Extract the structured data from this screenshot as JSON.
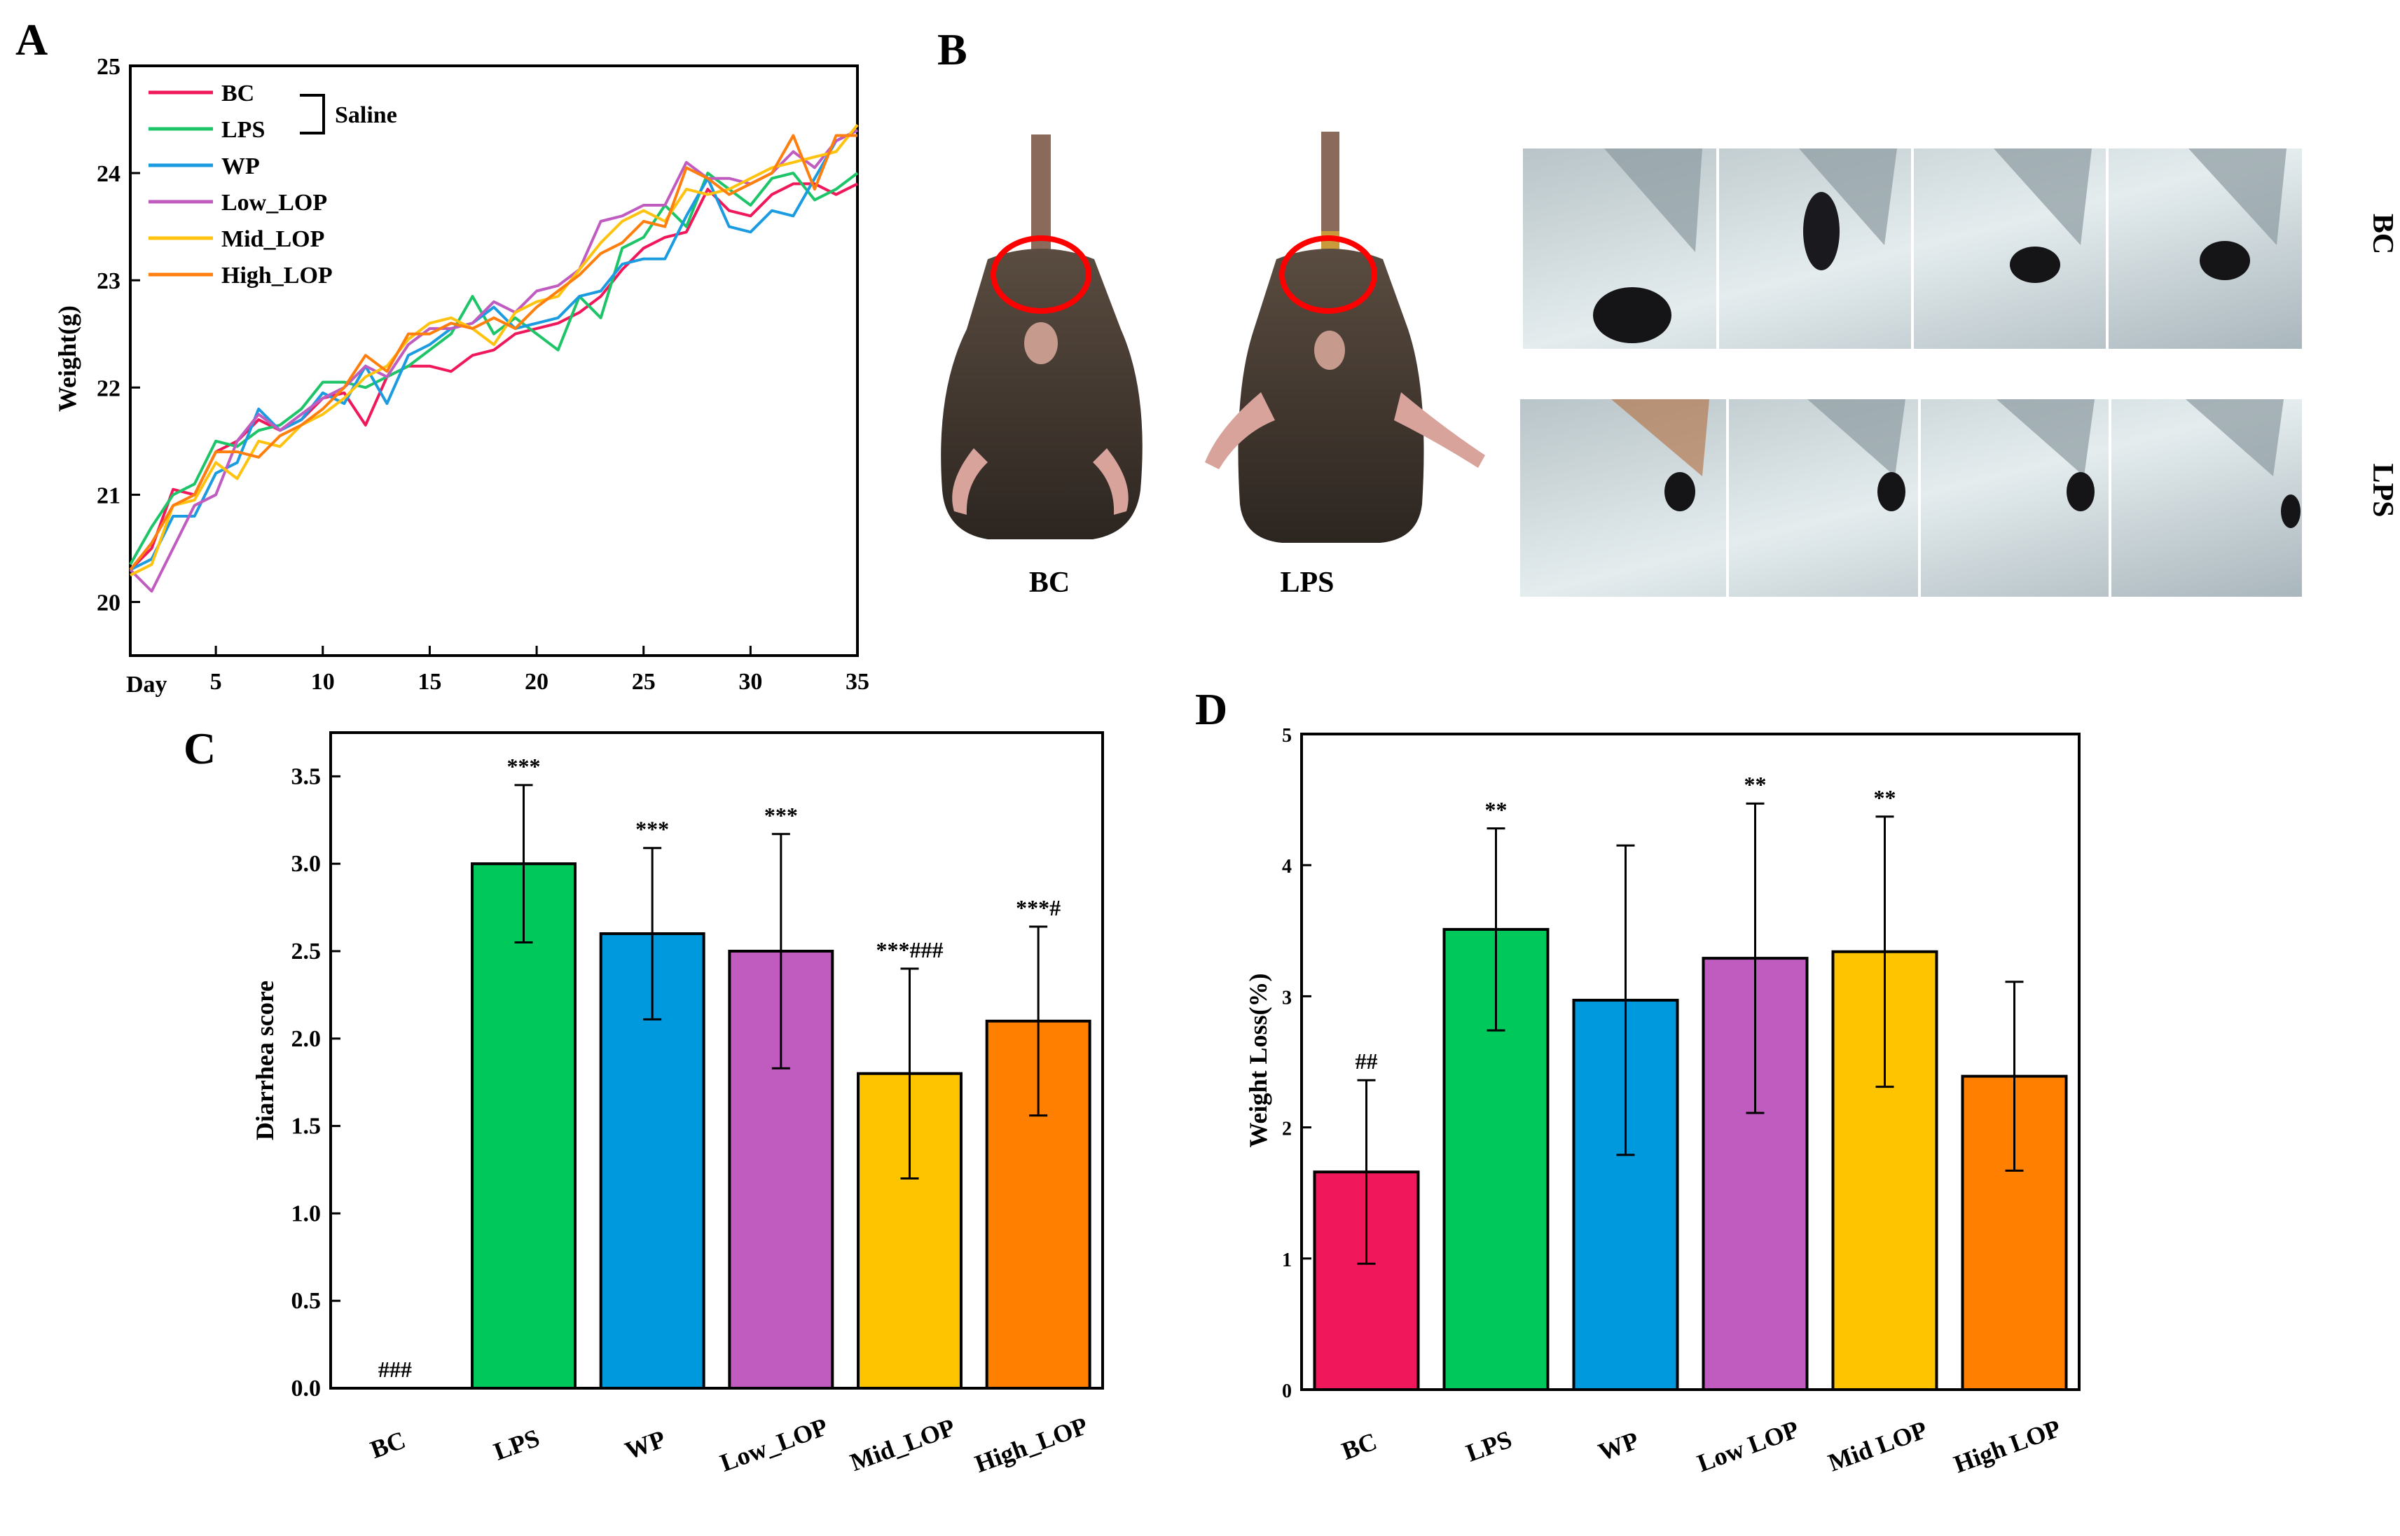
{
  "panels": {
    "a": "A",
    "b": "B",
    "c": "C",
    "d": "D"
  },
  "photo_panel": {
    "mouse_labels": [
      "BC",
      "LPS"
    ],
    "row_labels": [
      "BC",
      "LPS"
    ]
  },
  "chart_data": [
    {
      "id": "A",
      "type": "line",
      "title": "",
      "xlabel": "Day",
      "ylabel": "Weight(g)",
      "xlim": [
        1,
        35
      ],
      "ylim": [
        19.5,
        25
      ],
      "xticks": [
        5,
        10,
        15,
        20,
        25,
        30,
        35
      ],
      "yticks": [
        20,
        21,
        22,
        23,
        24,
        25
      ],
      "legend_group_label": "Saline",
      "legend_position": "top-left",
      "x": [
        1,
        2,
        3,
        4,
        5,
        6,
        7,
        8,
        9,
        10,
        11,
        12,
        13,
        14,
        15,
        16,
        17,
        18,
        19,
        20,
        21,
        22,
        23,
        24,
        25,
        26,
        27,
        28,
        29,
        30,
        31,
        32,
        33,
        34,
        35
      ],
      "series": [
        {
          "name": "BC",
          "color": "#f0185a",
          "values": [
            20.3,
            20.5,
            21.05,
            21.0,
            21.4,
            21.5,
            21.7,
            21.6,
            21.7,
            21.9,
            21.95,
            21.65,
            22.1,
            22.2,
            22.2,
            22.15,
            22.3,
            22.35,
            22.5,
            22.55,
            22.6,
            22.7,
            22.85,
            23.1,
            23.3,
            23.4,
            23.45,
            23.85,
            23.65,
            23.6,
            23.8,
            23.9,
            23.9,
            23.8,
            23.9
          ]
        },
        {
          "name": "LPS",
          "color": "#1dc468",
          "values": [
            20.35,
            20.7,
            21.0,
            21.1,
            21.5,
            21.45,
            21.6,
            21.65,
            21.8,
            22.05,
            22.05,
            22.0,
            22.1,
            22.2,
            22.35,
            22.5,
            22.85,
            22.5,
            22.65,
            22.5,
            22.35,
            22.85,
            22.65,
            23.3,
            23.4,
            23.7,
            23.5,
            24.0,
            23.85,
            23.7,
            23.95,
            24.0,
            23.75,
            23.85,
            24.0
          ]
        },
        {
          "name": "WP",
          "color": "#1b9be0",
          "values": [
            20.3,
            20.4,
            20.8,
            20.8,
            21.2,
            21.3,
            21.8,
            21.6,
            21.7,
            21.95,
            21.85,
            22.2,
            21.85,
            22.3,
            22.4,
            22.55,
            22.6,
            22.75,
            22.55,
            22.6,
            22.65,
            22.85,
            22.9,
            23.15,
            23.2,
            23.2,
            23.6,
            23.95,
            23.5,
            23.45,
            23.65,
            23.6,
            23.95,
            24.3,
            24.4
          ]
        },
        {
          "name": "Low_LOP",
          "color": "#c05cc0",
          "values": [
            20.3,
            20.1,
            20.5,
            20.9,
            21.0,
            21.5,
            21.75,
            21.6,
            21.75,
            21.9,
            22.0,
            22.2,
            22.1,
            22.4,
            22.55,
            22.55,
            22.6,
            22.8,
            22.7,
            22.9,
            22.95,
            23.1,
            23.55,
            23.6,
            23.7,
            23.7,
            24.1,
            23.95,
            23.95,
            23.9,
            24.0,
            24.2,
            24.05,
            24.3,
            24.4
          ]
        },
        {
          "name": "Mid_LOP",
          "color": "#ffc20e",
          "values": [
            20.25,
            20.35,
            20.9,
            20.95,
            21.3,
            21.15,
            21.5,
            21.45,
            21.65,
            21.75,
            21.9,
            22.1,
            22.2,
            22.45,
            22.6,
            22.65,
            22.55,
            22.4,
            22.7,
            22.8,
            22.85,
            23.1,
            23.35,
            23.55,
            23.65,
            23.55,
            23.85,
            23.8,
            23.85,
            23.95,
            24.05,
            24.1,
            24.15,
            24.2,
            24.45
          ]
        },
        {
          "name": "High_LOP",
          "color": "#ff7f0e",
          "values": [
            20.3,
            20.55,
            20.9,
            21.0,
            21.4,
            21.4,
            21.35,
            21.55,
            21.65,
            21.8,
            22.0,
            22.3,
            22.15,
            22.5,
            22.5,
            22.6,
            22.55,
            22.65,
            22.55,
            22.75,
            22.9,
            23.05,
            23.25,
            23.35,
            23.55,
            23.5,
            24.05,
            23.95,
            23.8,
            23.9,
            24.0,
            24.35,
            23.85,
            24.35,
            24.35
          ]
        }
      ]
    },
    {
      "id": "C",
      "type": "bar",
      "title": "",
      "xlabel": "",
      "ylabel": "Diarrhea score",
      "ylim": [
        0,
        3.75
      ],
      "yticks": [
        0.0,
        0.5,
        1.0,
        1.5,
        2.0,
        2.5,
        3.0,
        3.5
      ],
      "ytick_labels": [
        "0.0",
        "0.5",
        "1.0",
        "1.5",
        "2.0",
        "2.5",
        "3.0",
        "3.5"
      ],
      "categories": [
        "BC",
        "LPS",
        "WP",
        "Low_LOP",
        "Mid_LOP",
        "High_LOP"
      ],
      "values": [
        0,
        3.0,
        2.6,
        2.5,
        1.8,
        2.1
      ],
      "errors": [
        0,
        0.45,
        0.49,
        0.67,
        0.6,
        0.54
      ],
      "colors": [
        "#f0185a",
        "#00c85a",
        "#0099dd",
        "#c05cc0",
        "#ffc400",
        "#ff8000"
      ],
      "annotations": [
        "###",
        "***",
        "***",
        "***",
        "***###",
        "***#"
      ]
    },
    {
      "id": "D",
      "type": "bar",
      "title": "",
      "xlabel": "",
      "ylabel": "Weight Loss(%)",
      "ylim": [
        0,
        5
      ],
      "yticks": [
        0,
        1,
        2,
        3,
        4,
        5
      ],
      "ytick_labels": [
        "0",
        "1",
        "2",
        "3",
        "4",
        "5"
      ],
      "categories": [
        "BC",
        "LPS",
        "WP",
        "Low LOP",
        "Mid LOP",
        "High LOP"
      ],
      "values": [
        1.66,
        3.51,
        2.97,
        3.29,
        3.34,
        2.39
      ],
      "errors": [
        0.7,
        0.77,
        1.18,
        1.18,
        1.03,
        0.72
      ],
      "colors": [
        "#f0185a",
        "#00c85a",
        "#0099dd",
        "#c05cc0",
        "#ffc400",
        "#ff8000"
      ],
      "annotations": [
        "##",
        "**",
        "",
        "**",
        "**",
        ""
      ]
    }
  ]
}
